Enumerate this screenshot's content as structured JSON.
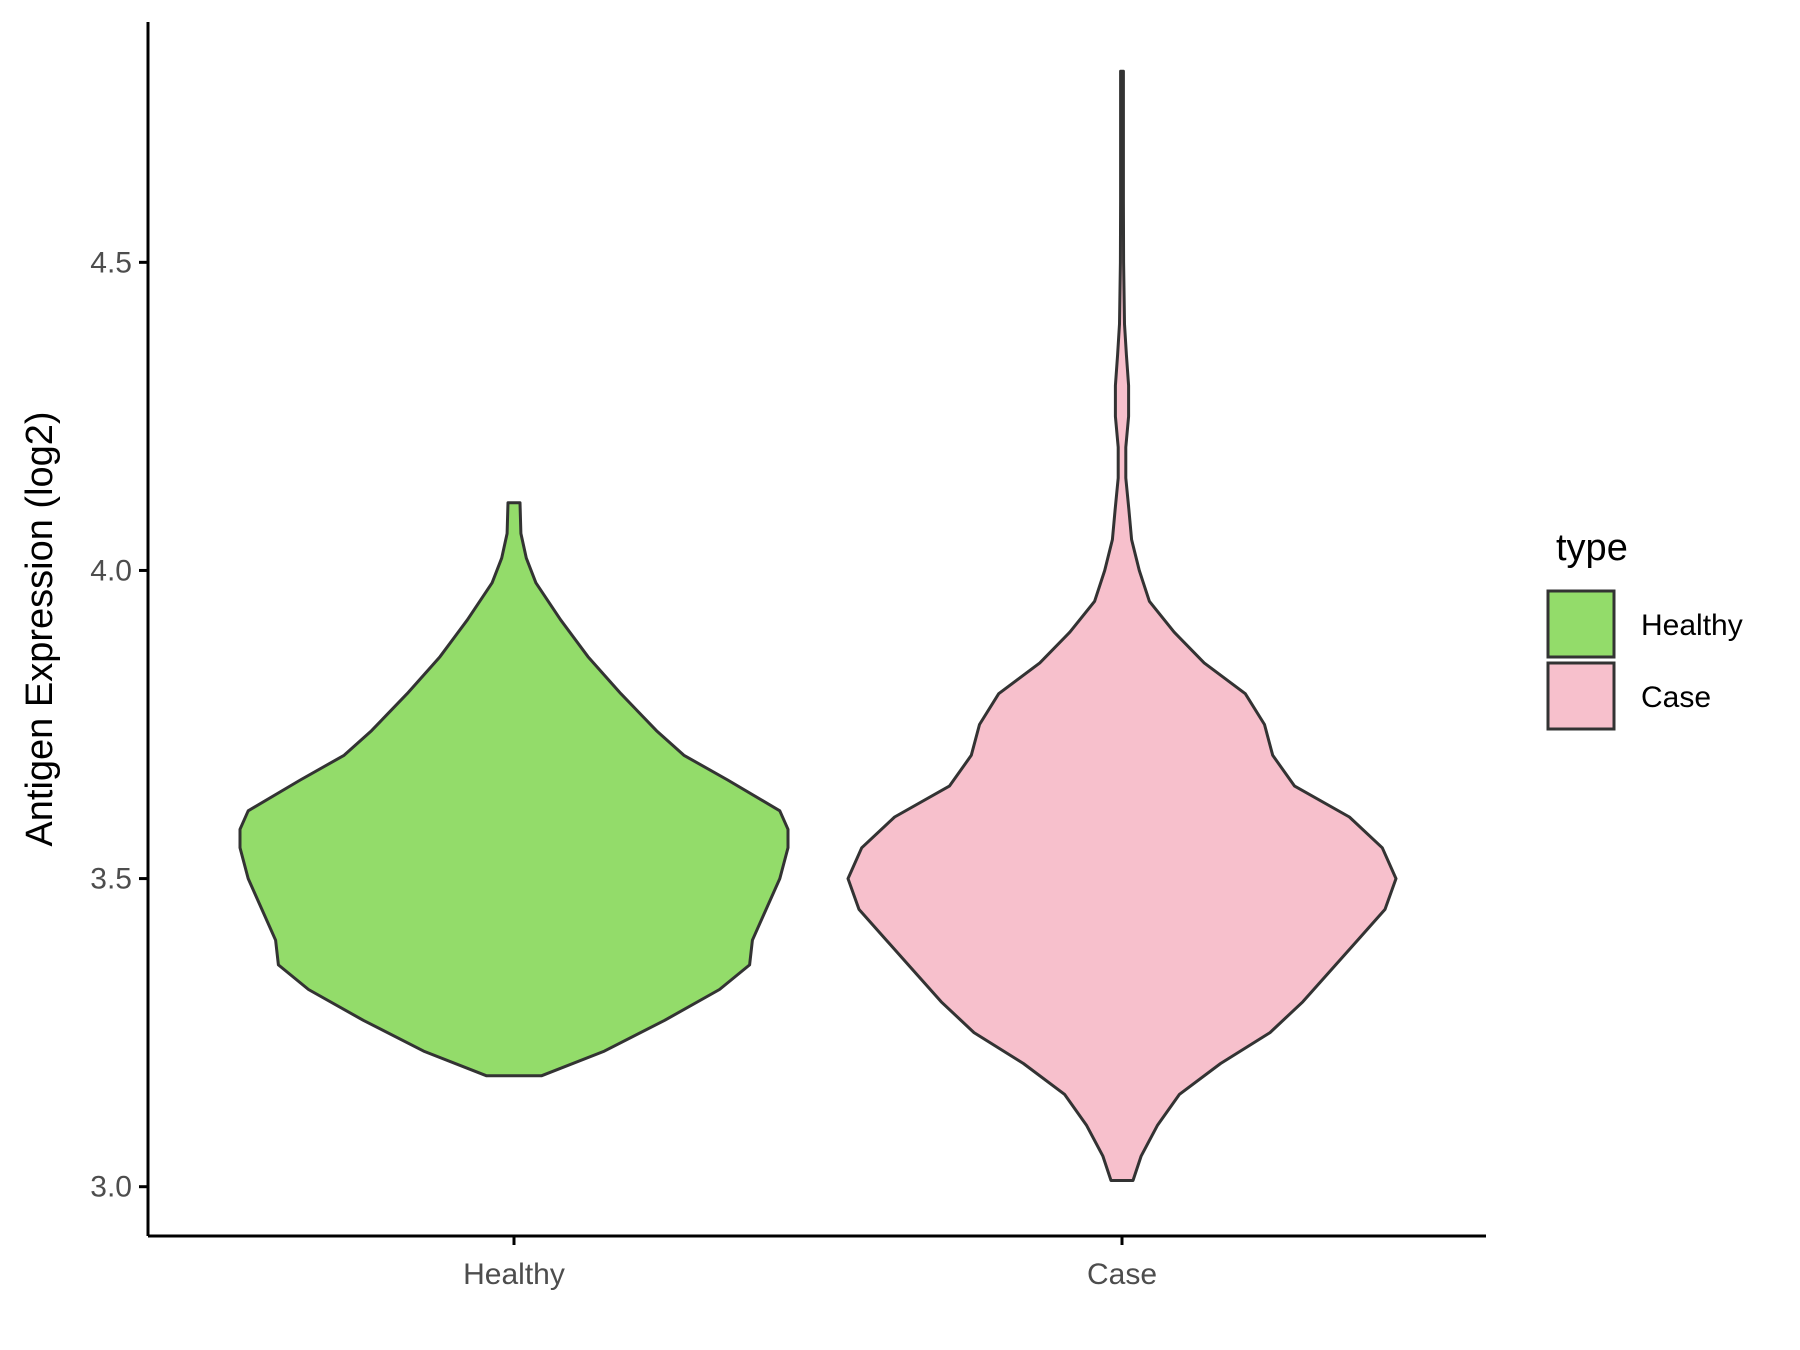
{
  "chart_data": {
    "type": "violin",
    "ylabel": "Antigen Expression (log2)",
    "xlabel": "",
    "ylim": [
      2.92,
      4.89
    ],
    "yticks": [
      "3.0",
      "3.5",
      "4.0",
      "4.5"
    ],
    "categories": [
      "Healthy",
      "Case"
    ],
    "legend": {
      "title": "type",
      "position": "right",
      "items": [
        "Healthy",
        "Case"
      ]
    },
    "colors": {
      "Healthy": "#93dc6a",
      "Case": "#f7c0cc",
      "outline": "#333333"
    },
    "series": [
      {
        "name": "Healthy",
        "range": [
          3.18,
          4.11
        ],
        "density": [
          [
            3.18,
            0.1
          ],
          [
            3.22,
            0.33
          ],
          [
            3.27,
            0.55
          ],
          [
            3.32,
            0.75
          ],
          [
            3.36,
            0.86
          ],
          [
            3.4,
            0.87
          ],
          [
            3.45,
            0.92
          ],
          [
            3.5,
            0.97
          ],
          [
            3.55,
            1.0
          ],
          [
            3.58,
            1.0
          ],
          [
            3.61,
            0.97
          ],
          [
            3.66,
            0.78
          ],
          [
            3.7,
            0.62
          ],
          [
            3.74,
            0.52
          ],
          [
            3.8,
            0.39
          ],
          [
            3.86,
            0.27
          ],
          [
            3.92,
            0.17
          ],
          [
            3.98,
            0.08
          ],
          [
            4.02,
            0.045
          ],
          [
            4.06,
            0.025
          ],
          [
            4.11,
            0.022
          ]
        ]
      },
      {
        "name": "Case",
        "range": [
          3.01,
          4.81
        ],
        "density": [
          [
            3.01,
            0.04
          ],
          [
            3.05,
            0.07
          ],
          [
            3.1,
            0.13
          ],
          [
            3.15,
            0.21
          ],
          [
            3.2,
            0.36
          ],
          [
            3.25,
            0.54
          ],
          [
            3.3,
            0.66
          ],
          [
            3.35,
            0.76
          ],
          [
            3.4,
            0.86
          ],
          [
            3.45,
            0.96
          ],
          [
            3.5,
            1.0
          ],
          [
            3.55,
            0.95
          ],
          [
            3.6,
            0.83
          ],
          [
            3.65,
            0.63
          ],
          [
            3.7,
            0.55
          ],
          [
            3.75,
            0.52
          ],
          [
            3.8,
            0.45
          ],
          [
            3.85,
            0.3
          ],
          [
            3.9,
            0.19
          ],
          [
            3.95,
            0.1
          ],
          [
            4.0,
            0.063
          ],
          [
            4.05,
            0.035
          ],
          [
            4.1,
            0.025
          ],
          [
            4.15,
            0.014
          ],
          [
            4.2,
            0.014
          ],
          [
            4.25,
            0.024
          ],
          [
            4.3,
            0.024
          ],
          [
            4.35,
            0.016
          ],
          [
            4.4,
            0.009
          ],
          [
            4.5,
            0.006
          ],
          [
            4.6,
            0.005
          ],
          [
            4.7,
            0.005
          ],
          [
            4.81,
            0.005
          ]
        ]
      }
    ]
  }
}
